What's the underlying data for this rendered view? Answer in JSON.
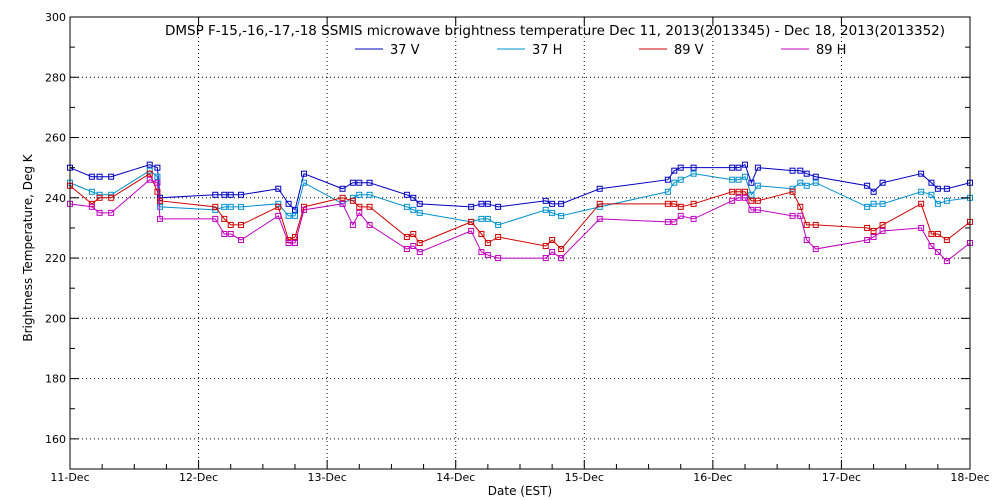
{
  "chart_data": {
    "type": "line",
    "title": "DMSP F-15,-16,-17,-18 SSMIS microwave brightness temperature Dec 11, 2013(2013345) - Dec 18, 2013(2013352)",
    "xlabel": "Date (EST)",
    "ylabel": "Brightness Temperature, Deg K",
    "xlim": [
      0,
      7
    ],
    "ylim": [
      150,
      300
    ],
    "yticks": [
      160,
      180,
      200,
      220,
      240,
      260,
      280,
      300
    ],
    "xtick_labels": [
      "11-Dec",
      "12-Dec",
      "13-Dec",
      "14-Dec",
      "15-Dec",
      "16-Dec",
      "17-Dec",
      "18-Dec"
    ],
    "x_unit": "days since Dec 11, 2013 00:00 EST",
    "grid": true,
    "legend_position": "top-center",
    "series": [
      {
        "name": "37 V",
        "color": "#0000c0",
        "points": [
          [
            0.0,
            250
          ],
          [
            0.17,
            247
          ],
          [
            0.23,
            247
          ],
          [
            0.32,
            247
          ],
          [
            0.62,
            251
          ],
          [
            0.68,
            250
          ],
          [
            0.7,
            240
          ],
          [
            1.13,
            241
          ],
          [
            1.2,
            241
          ],
          [
            1.25,
            241
          ],
          [
            1.33,
            241
          ],
          [
            1.62,
            243
          ],
          [
            1.7,
            238
          ],
          [
            1.75,
            236
          ],
          [
            1.82,
            248
          ],
          [
            2.12,
            243
          ],
          [
            2.2,
            245
          ],
          [
            2.25,
            245
          ],
          [
            2.33,
            245
          ],
          [
            2.62,
            241
          ],
          [
            2.67,
            240
          ],
          [
            2.72,
            238
          ],
          [
            3.12,
            237
          ],
          [
            3.2,
            238
          ],
          [
            3.25,
            238
          ],
          [
            3.33,
            237
          ],
          [
            3.7,
            239
          ],
          [
            3.75,
            238
          ],
          [
            3.82,
            238
          ],
          [
            4.12,
            243
          ],
          [
            4.65,
            246
          ],
          [
            4.7,
            249
          ],
          [
            4.75,
            250
          ],
          [
            4.85,
            250
          ],
          [
            5.15,
            250
          ],
          [
            5.2,
            250
          ],
          [
            5.25,
            251
          ],
          [
            5.3,
            245
          ],
          [
            5.35,
            250
          ],
          [
            5.62,
            249
          ],
          [
            5.68,
            249
          ],
          [
            5.73,
            248
          ],
          [
            5.8,
            247
          ],
          [
            6.2,
            244
          ],
          [
            6.25,
            242
          ],
          [
            6.32,
            245
          ],
          [
            6.62,
            248
          ],
          [
            6.7,
            245
          ],
          [
            6.75,
            243
          ],
          [
            6.82,
            243
          ],
          [
            7.0,
            245
          ]
        ]
      },
      {
        "name": "37 H",
        "color": "#0090d0",
        "points": [
          [
            0.0,
            245
          ],
          [
            0.17,
            242
          ],
          [
            0.23,
            241
          ],
          [
            0.32,
            241
          ],
          [
            0.62,
            249
          ],
          [
            0.68,
            247
          ],
          [
            0.7,
            237
          ],
          [
            1.13,
            236
          ],
          [
            1.2,
            237
          ],
          [
            1.25,
            237
          ],
          [
            1.33,
            237
          ],
          [
            1.62,
            238
          ],
          [
            1.7,
            234
          ],
          [
            1.75,
            234
          ],
          [
            1.82,
            245
          ],
          [
            2.12,
            238
          ],
          [
            2.2,
            240
          ],
          [
            2.25,
            241
          ],
          [
            2.33,
            241
          ],
          [
            2.62,
            237
          ],
          [
            2.67,
            236
          ],
          [
            2.72,
            235
          ],
          [
            3.12,
            232
          ],
          [
            3.2,
            233
          ],
          [
            3.25,
            233
          ],
          [
            3.33,
            231
          ],
          [
            3.7,
            236
          ],
          [
            3.75,
            235
          ],
          [
            3.82,
            234
          ],
          [
            4.12,
            237
          ],
          [
            4.65,
            242
          ],
          [
            4.7,
            245
          ],
          [
            4.75,
            246
          ],
          [
            4.85,
            248
          ],
          [
            5.15,
            246
          ],
          [
            5.2,
            246
          ],
          [
            5.25,
            247
          ],
          [
            5.3,
            241
          ],
          [
            5.35,
            244
          ],
          [
            5.62,
            243
          ],
          [
            5.68,
            245
          ],
          [
            5.73,
            244
          ],
          [
            5.8,
            245
          ],
          [
            6.2,
            237
          ],
          [
            6.25,
            238
          ],
          [
            6.32,
            238
          ],
          [
            6.62,
            242
          ],
          [
            6.7,
            241
          ],
          [
            6.75,
            238
          ],
          [
            6.82,
            239
          ],
          [
            7.0,
            240
          ]
        ]
      },
      {
        "name": "89 V",
        "color": "#d00000",
        "points": [
          [
            0.0,
            244
          ],
          [
            0.17,
            238
          ],
          [
            0.23,
            240
          ],
          [
            0.32,
            240
          ],
          [
            0.62,
            248
          ],
          [
            0.68,
            242
          ],
          [
            0.7,
            239
          ],
          [
            1.13,
            237
          ],
          [
            1.2,
            233
          ],
          [
            1.25,
            231
          ],
          [
            1.33,
            231
          ],
          [
            1.62,
            237
          ],
          [
            1.7,
            226
          ],
          [
            1.75,
            227
          ],
          [
            1.82,
            237
          ],
          [
            2.12,
            240
          ],
          [
            2.2,
            239
          ],
          [
            2.25,
            237
          ],
          [
            2.33,
            237
          ],
          [
            2.62,
            227
          ],
          [
            2.67,
            228
          ],
          [
            2.72,
            225
          ],
          [
            3.12,
            232
          ],
          [
            3.2,
            228
          ],
          [
            3.25,
            225
          ],
          [
            3.33,
            227
          ],
          [
            3.7,
            224
          ],
          [
            3.75,
            226
          ],
          [
            3.82,
            223
          ],
          [
            4.12,
            238
          ],
          [
            4.65,
            238
          ],
          [
            4.7,
            238
          ],
          [
            4.75,
            237
          ],
          [
            4.85,
            238
          ],
          [
            5.15,
            242
          ],
          [
            5.2,
            242
          ],
          [
            5.25,
            242
          ],
          [
            5.3,
            239
          ],
          [
            5.35,
            239
          ],
          [
            5.62,
            242
          ],
          [
            5.68,
            237
          ],
          [
            5.73,
            231
          ],
          [
            5.8,
            231
          ],
          [
            6.2,
            230
          ],
          [
            6.25,
            229
          ],
          [
            6.32,
            231
          ],
          [
            6.62,
            238
          ],
          [
            6.7,
            228
          ],
          [
            6.75,
            228
          ],
          [
            6.82,
            226
          ],
          [
            7.0,
            232
          ]
        ]
      },
      {
        "name": "89 H",
        "color": "#c000c0",
        "points": [
          [
            0.0,
            238
          ],
          [
            0.17,
            237
          ],
          [
            0.23,
            235
          ],
          [
            0.32,
            235
          ],
          [
            0.62,
            246
          ],
          [
            0.68,
            245
          ],
          [
            0.7,
            233
          ],
          [
            1.13,
            233
          ],
          [
            1.2,
            228
          ],
          [
            1.25,
            228
          ],
          [
            1.33,
            226
          ],
          [
            1.62,
            234
          ],
          [
            1.7,
            225
          ],
          [
            1.75,
            225
          ],
          [
            1.82,
            236
          ],
          [
            2.12,
            238
          ],
          [
            2.2,
            231
          ],
          [
            2.25,
            235
          ],
          [
            2.33,
            231
          ],
          [
            2.62,
            223
          ],
          [
            2.67,
            224
          ],
          [
            2.72,
            222
          ],
          [
            3.12,
            229
          ],
          [
            3.2,
            222
          ],
          [
            3.25,
            221
          ],
          [
            3.33,
            220
          ],
          [
            3.7,
            220
          ],
          [
            3.75,
            222
          ],
          [
            3.82,
            220
          ],
          [
            4.12,
            233
          ],
          [
            4.65,
            232
          ],
          [
            4.7,
            232
          ],
          [
            4.75,
            234
          ],
          [
            4.85,
            233
          ],
          [
            5.15,
            239
          ],
          [
            5.2,
            240
          ],
          [
            5.25,
            240
          ],
          [
            5.3,
            236
          ],
          [
            5.35,
            236
          ],
          [
            5.62,
            234
          ],
          [
            5.68,
            234
          ],
          [
            5.73,
            226
          ],
          [
            5.8,
            223
          ],
          [
            6.2,
            226
          ],
          [
            6.25,
            227
          ],
          [
            6.32,
            229
          ],
          [
            6.62,
            230
          ],
          [
            6.7,
            224
          ],
          [
            6.75,
            222
          ],
          [
            6.82,
            219
          ],
          [
            7.0,
            225
          ]
        ]
      }
    ]
  }
}
